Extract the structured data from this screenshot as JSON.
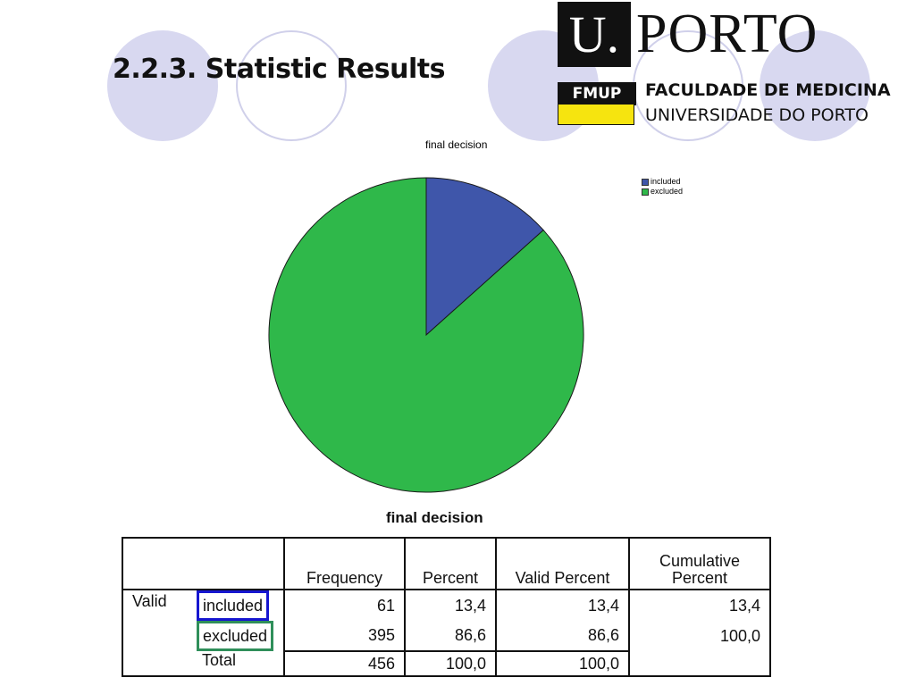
{
  "slide": {
    "title": "2.2.3. Statistic Results"
  },
  "logo": {
    "mark": "U.",
    "name": "PORTO",
    "badge": "FMUP",
    "faculty": "FACULDADE DE MEDICINA",
    "university": "UNIVERSIDADE DO PORTO"
  },
  "colors": {
    "included": "#3f56aa",
    "excluded": "#2fb84a",
    "included_box": "#1616d0",
    "excluded_box": "#2f8f5a"
  },
  "chart_data": {
    "type": "pie",
    "title": "final decision",
    "categories": [
      "included",
      "excluded"
    ],
    "values": [
      61,
      395
    ],
    "legend_position": "top-right"
  },
  "table": {
    "title": "final decision",
    "headers": [
      "Frequency",
      "Percent",
      "Valid Percent",
      "Cumulative Percent"
    ],
    "row_group": "Valid",
    "rows": [
      {
        "label": "included",
        "frequency": "61",
        "percent": "13,4",
        "valid_percent": "13,4",
        "cumulative_percent": "13,4"
      },
      {
        "label": "excluded",
        "frequency": "395",
        "percent": "86,6",
        "valid_percent": "86,6",
        "cumulative_percent": "100,0"
      },
      {
        "label": "Total",
        "frequency": "456",
        "percent": "100,0",
        "valid_percent": "100,0",
        "cumulative_percent": ""
      }
    ]
  }
}
